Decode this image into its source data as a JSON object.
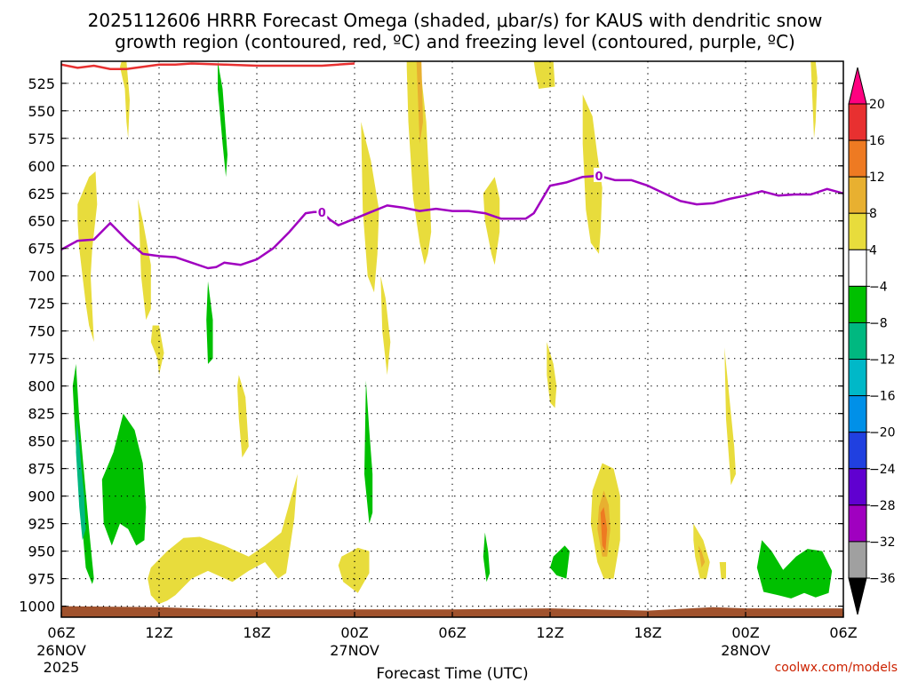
{
  "chart_data": {
    "type": "heatmap",
    "title": [
      "2025112606 HRRR Forecast Omega (shaded, μbar/s) for KAUS with dendritic snow",
      "growth region (contoured, red, ºC) and freezing level (contoured, purple, ºC)"
    ],
    "xlabel": "Forecast Time (UTC)",
    "ylabel": "",
    "x_units": "hours since 2025-11-26 06Z",
    "xlim": [
      0,
      48
    ],
    "ylim": [
      1010,
      505
    ],
    "x_ticks": [
      {
        "x": 0,
        "label": "06Z",
        "date": "26NOV",
        "year": "2025"
      },
      {
        "x": 6,
        "label": "12Z"
      },
      {
        "x": 12,
        "label": "18Z"
      },
      {
        "x": 18,
        "label": "00Z",
        "date": "27NOV"
      },
      {
        "x": 24,
        "label": "06Z"
      },
      {
        "x": 30,
        "label": "12Z"
      },
      {
        "x": 36,
        "label": "18Z"
      },
      {
        "x": 42,
        "label": "00Z",
        "date": "28NOV"
      },
      {
        "x": 48,
        "label": "06Z"
      }
    ],
    "y_ticks": [
      525,
      550,
      575,
      600,
      625,
      650,
      675,
      700,
      725,
      750,
      775,
      800,
      825,
      850,
      875,
      900,
      925,
      950,
      975,
      1000
    ],
    "grid": true,
    "colorbar": {
      "labels": [
        "20",
        "16",
        "12",
        "8",
        "4",
        "−4",
        "−8",
        "−12",
        "−16",
        "−20",
        "−24",
        "−28",
        "−32",
        "−36"
      ],
      "colors": [
        "#ff0080",
        "#e83030",
        "#ee7a22",
        "#e8b030",
        "#e8dc3c",
        "#ffffff",
        "#00c000",
        "#00b880",
        "#00b8c8",
        "#0090e8",
        "#2040e0",
        "#6000d0",
        "#a000c0",
        "#a0a0a0",
        "#000000"
      ]
    },
    "freezing_level": {
      "label": "0",
      "color": "#a000c0",
      "x": [
        0,
        1,
        2,
        3,
        4,
        5,
        6,
        7,
        8,
        9,
        9.5,
        10,
        11,
        12,
        13,
        14,
        15,
        15.5,
        16,
        16.5,
        17,
        18,
        19,
        20,
        21,
        22,
        23,
        24,
        25,
        26,
        27,
        28,
        28.5,
        29,
        30,
        31,
        32,
        33,
        34,
        35,
        36,
        37,
        38,
        39,
        40,
        41,
        42,
        43,
        44,
        45,
        46,
        47,
        48
      ],
      "y": [
        676,
        668,
        667,
        652,
        667,
        680,
        682,
        683,
        688,
        693,
        692,
        688,
        690,
        685,
        675,
        660,
        643,
        642,
        642,
        649,
        654,
        648,
        642,
        636,
        638,
        641,
        639,
        641,
        641,
        643,
        648,
        648,
        648,
        643,
        618,
        615,
        610,
        609,
        613,
        613,
        618,
        625,
        632,
        635,
        634,
        630,
        627,
        623,
        627,
        626,
        626,
        621,
        625
      ]
    },
    "dgz_contour": {
      "color": "#e83030",
      "x": [
        0,
        1,
        2,
        3,
        4,
        5,
        6,
        7,
        8,
        10,
        12,
        14,
        16,
        17,
        18
      ],
      "y": [
        508,
        511,
        509,
        512,
        512,
        510,
        508,
        508,
        507,
        508,
        509,
        509,
        509,
        508,
        507
      ]
    },
    "omega_regions": [
      {
        "level": -6,
        "x": [
          0.9,
          1.1,
          1.4,
          1.7,
          1.9,
          2.0,
          1.9,
          1.5,
          1.3,
          1.0,
          0.8,
          0.7
        ],
        "y": [
          780,
          830,
          880,
          930,
          960,
          975,
          980,
          965,
          930,
          880,
          830,
          800
        ]
      },
      {
        "level": -10,
        "x": [
          0.95,
          1.15,
          1.4,
          1.5,
          1.3,
          1.1,
          0.9
        ],
        "y": [
          830,
          860,
          900,
          930,
          940,
          910,
          860
        ]
      },
      {
        "level": -6,
        "x": [
          2.5,
          3.2,
          3.8,
          4.5,
          5.0,
          5.2,
          5.1,
          4.6,
          4.1,
          3.6,
          3.1,
          2.6
        ],
        "y": [
          885,
          860,
          825,
          840,
          870,
          910,
          940,
          945,
          930,
          925,
          945,
          925
        ]
      },
      {
        "level": -6,
        "x": [
          9.6,
          9.9,
          10.2,
          10.1,
          9.9,
          9.6
        ],
        "y": [
          505,
          530,
          590,
          610,
          580,
          530
        ]
      },
      {
        "level": -6,
        "x": [
          9.0,
          9.3,
          9.3,
          9.0,
          8.9
        ],
        "y": [
          705,
          740,
          775,
          780,
          740
        ]
      },
      {
        "level": -6,
        "x": [
          18.7,
          18.9,
          19.1,
          19.1,
          18.9,
          18.6
        ],
        "y": [
          795,
          840,
          880,
          915,
          925,
          880
        ]
      },
      {
        "level": -6,
        "x": [
          26.0,
          26.2,
          26.3,
          26.1,
          25.9
        ],
        "y": [
          933,
          950,
          970,
          978,
          955
        ]
      },
      {
        "level": -6,
        "x": [
          30.2,
          30.9,
          31.2,
          31.0,
          30.4,
          30.0
        ],
        "y": [
          955,
          945,
          950,
          975,
          972,
          965
        ]
      },
      {
        "level": -6,
        "x": [
          43.0,
          43.6,
          44.3,
          45.1,
          45.8,
          46.7,
          47.3,
          47.1,
          46.3,
          45.6,
          44.8,
          44.0,
          43.1,
          42.7
        ],
        "y": [
          940,
          950,
          967,
          955,
          948,
          950,
          968,
          988,
          992,
          988,
          993,
          990,
          987,
          965
        ]
      },
      {
        "level": 6,
        "x": [
          1.0,
          1.7,
          2.1,
          2.2,
          1.9,
          1.8,
          1.9,
          2.0,
          1.7,
          1.5,
          1.3,
          1.1,
          1.0
        ],
        "y": [
          635,
          610,
          605,
          635,
          675,
          700,
          730,
          760,
          745,
          725,
          700,
          675,
          650
        ]
      },
      {
        "level": 6,
        "x": [
          3.7,
          4.0,
          4.2,
          4.1,
          4.0,
          3.9,
          3.6
        ],
        "y": [
          505,
          505,
          540,
          575,
          560,
          530,
          510
        ]
      },
      {
        "level": 6,
        "x": [
          4.7,
          5.0,
          5.5,
          5.5,
          5.2,
          4.9,
          4.8
        ],
        "y": [
          630,
          650,
          690,
          730,
          740,
          700,
          660
        ]
      },
      {
        "level": 6,
        "x": [
          5.6,
          6.0,
          6.3,
          6.0,
          5.9,
          5.5
        ],
        "y": [
          745,
          745,
          770,
          790,
          775,
          760
        ]
      },
      {
        "level": 6,
        "x": [
          10.9,
          11.3,
          11.5,
          11.1,
          10.9,
          10.8
        ],
        "y": [
          790,
          810,
          855,
          865,
          830,
          800
        ]
      },
      {
        "level": 6,
        "x": [
          5.5,
          6.5,
          7.5,
          8.5,
          10.0,
          11.5,
          12.5,
          13.5,
          14.5,
          14.3,
          14.0,
          13.8,
          13.3,
          12.5,
          11.5,
          10.5,
          9.0,
          8.0,
          7.0,
          6.5,
          6.0,
          5.5,
          5.3
        ],
        "y": [
          965,
          950,
          938,
          937,
          945,
          955,
          945,
          933,
          880,
          920,
          950,
          970,
          975,
          960,
          968,
          978,
          968,
          975,
          990,
          995,
          998,
          990,
          975
        ]
      },
      {
        "level": 6,
        "x": [
          17.2,
          18.2,
          18.9,
          18.9,
          18.2,
          17.3,
          17.0
        ],
        "y": [
          955,
          947,
          950,
          970,
          988,
          978,
          963
        ]
      },
      {
        "level": 6,
        "x": [
          18.4,
          19.0,
          19.5,
          19.4,
          19.2,
          18.8,
          18.5
        ],
        "y": [
          560,
          595,
          640,
          680,
          715,
          700,
          640
        ]
      },
      {
        "level": 6,
        "x": [
          19.6,
          19.9,
          20.2,
          20.0,
          19.7
        ],
        "y": [
          700,
          720,
          760,
          790,
          750
        ]
      },
      {
        "level": 6,
        "x": [
          21.2,
          22.0,
          22.4,
          22.6,
          22.7,
          22.5,
          22.3,
          22.0,
          21.6,
          21.3,
          21.2
        ],
        "y": [
          505,
          505,
          560,
          620,
          660,
          680,
          690,
          670,
          630,
          560,
          510
        ]
      },
      {
        "level": 6,
        "x": [
          25.9,
          26.6,
          26.9,
          26.9,
          26.6,
          26.4,
          26.0
        ],
        "y": [
          625,
          610,
          630,
          660,
          690,
          680,
          650
        ]
      },
      {
        "level": 6,
        "x": [
          29.0,
          30.2,
          30.3,
          29.3,
          29.1
        ],
        "y": [
          505,
          505,
          528,
          530,
          515
        ]
      },
      {
        "level": 6,
        "x": [
          29.8,
          30.2,
          30.4,
          30.3,
          30.0,
          29.8
        ],
        "y": [
          760,
          780,
          800,
          820,
          815,
          790
        ]
      },
      {
        "level": 6,
        "x": [
          32.0,
          32.6,
          32.9,
          33.2,
          33.1,
          33.0,
          32.5,
          32.2,
          32.0
        ],
        "y": [
          535,
          555,
          590,
          620,
          660,
          680,
          670,
          640,
          580
        ]
      },
      {
        "level": 6,
        "x": [
          32.6,
          33.2,
          33.9,
          34.3,
          34.3,
          33.9,
          33.3,
          32.9,
          32.5
        ],
        "y": [
          895,
          870,
          875,
          900,
          940,
          975,
          975,
          960,
          925
        ]
      },
      {
        "level": 6,
        "x": [
          38.8,
          39.4,
          39.8,
          39.6,
          39.2,
          38.9,
          38.8
        ],
        "y": [
          925,
          940,
          960,
          975,
          975,
          955,
          940
        ]
      },
      {
        "level": 6,
        "x": [
          40.7,
          41.0,
          41.3,
          41.4,
          41.1,
          40.8
        ],
        "y": [
          765,
          810,
          855,
          880,
          890,
          830
        ]
      },
      {
        "level": 6,
        "x": [
          40.4,
          40.8,
          40.8,
          40.5
        ],
        "y": [
          960,
          960,
          975,
          975
        ]
      },
      {
        "level": 6,
        "x": [
          46.0,
          46.3,
          46.4,
          46.3,
          46.2,
          46.1
        ],
        "y": [
          505,
          505,
          520,
          560,
          575,
          540
        ]
      },
      {
        "level": 10,
        "x": [
          33.0,
          33.3,
          33.6,
          33.7,
          33.5,
          33.2,
          32.9
        ],
        "y": [
          910,
          895,
          908,
          930,
          955,
          955,
          930
        ]
      },
      {
        "level": 14,
        "x": [
          33.1,
          33.3,
          33.5,
          33.4,
          33.2
        ],
        "y": [
          915,
          910,
          930,
          950,
          945
        ]
      },
      {
        "level": 10,
        "x": [
          21.8,
          22.1,
          22.2,
          22.0
        ],
        "y": [
          505,
          505,
          560,
          580
        ]
      },
      {
        "level": 10,
        "x": [
          39.1,
          39.3,
          39.5,
          39.3
        ],
        "y": [
          945,
          950,
          960,
          965
        ]
      }
    ],
    "ground_x": [
      0,
      6,
      10,
      24,
      30,
      36,
      40,
      42,
      48
    ],
    "ground_top": [
      1000,
      1001,
      1003,
      1003,
      1002,
      1004,
      1001,
      1002,
      1002
    ]
  },
  "credit": "coolwx.com/models"
}
